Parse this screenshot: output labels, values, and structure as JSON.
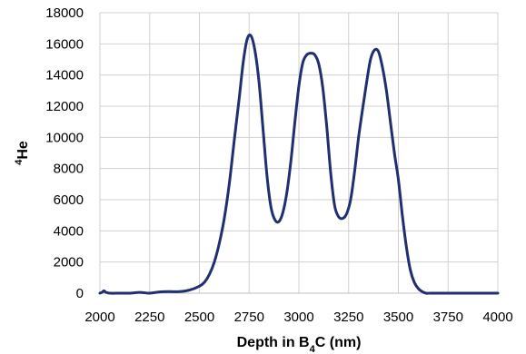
{
  "chart_data": {
    "type": "line",
    "xlabel": "Depth in B",
    "xlabel_subscript": "4",
    "xlabel_suffix": "C (nm)",
    "ylabel_superscript": "4",
    "ylabel": "He",
    "xlim": [
      2000,
      4000
    ],
    "ylim": [
      0,
      18000
    ],
    "x_ticks": [
      2000,
      2250,
      2500,
      2750,
      3000,
      3250,
      3500,
      3750,
      4000
    ],
    "y_ticks": [
      0,
      2000,
      4000,
      6000,
      8000,
      10000,
      12000,
      14000,
      16000,
      18000
    ],
    "x_tick_labels": [
      "2000",
      "2250",
      "2500",
      "2750",
      "3000",
      "3250",
      "3500",
      "3750",
      "4000"
    ],
    "y_tick_labels": [
      "0",
      "2000",
      "4000",
      "6000",
      "8000",
      "10000",
      "12000",
      "14000",
      "16000",
      "18000"
    ],
    "grid": true,
    "line_color": "#1f2f6f",
    "grid_color": "#d0d0d0",
    "series": [
      {
        "x": [
          2000,
          2010,
          2020,
          2030,
          2050,
          2100,
          2150,
          2200,
          2250,
          2300,
          2350,
          2400,
          2450,
          2500,
          2525,
          2550,
          2575,
          2600,
          2625,
          2650,
          2675,
          2700,
          2720,
          2740,
          2760,
          2780,
          2800,
          2820,
          2840,
          2860,
          2880,
          2900,
          2920,
          2940,
          2960,
          2980,
          3000,
          3020,
          3040,
          3060,
          3080,
          3100,
          3120,
          3140,
          3160,
          3180,
          3200,
          3220,
          3240,
          3260,
          3280,
          3300,
          3320,
          3340,
          3360,
          3380,
          3400,
          3420,
          3440,
          3460,
          3480,
          3500,
          3520,
          3540,
          3560,
          3580,
          3600,
          3620,
          3640,
          3660,
          3680,
          3700,
          3750,
          3800,
          3900,
          4000
        ],
        "y": [
          0,
          50,
          150,
          60,
          0,
          0,
          0,
          50,
          0,
          80,
          100,
          100,
          200,
          450,
          700,
          1200,
          2000,
          3200,
          4800,
          7000,
          9800,
          12500,
          14800,
          16300,
          16500,
          15500,
          13500,
          10500,
          7500,
          5500,
          4700,
          4600,
          5200,
          6500,
          8500,
          11000,
          13300,
          14800,
          15300,
          15400,
          15300,
          14700,
          13200,
          10700,
          7700,
          5600,
          4900,
          4800,
          5100,
          6000,
          7800,
          10000,
          11800,
          13500,
          15000,
          15600,
          15500,
          14500,
          13000,
          11000,
          9000,
          7300,
          5000,
          3000,
          1500,
          700,
          300,
          100,
          0,
          0,
          0,
          0,
          0,
          0,
          0,
          0
        ]
      }
    ]
  }
}
